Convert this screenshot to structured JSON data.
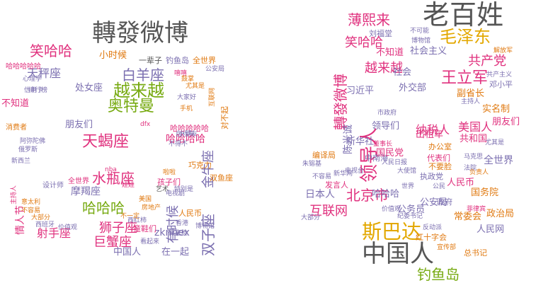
{
  "palette": {
    "gray": "#555555",
    "green": "#77aa11",
    "pink": "#e0317e",
    "purple": "#7b6fb0",
    "orange": "#e07a12",
    "gold": "#e3a800"
  },
  "left_cloud": {
    "words": [
      {
        "text": "轉發微博",
        "color": "gray",
        "size": 34,
        "rot": 0
      },
      {
        "text": "笑哈哈",
        "color": "pink",
        "size": 20,
        "rot": 0
      },
      {
        "text": "小时候",
        "color": "orange",
        "size": 13,
        "rot": 0
      },
      {
        "text": "一辈子",
        "color": "gray",
        "size": 11,
        "rot": 0
      },
      {
        "text": "钓鱼岛",
        "color": "purple",
        "size": 11,
        "rot": 0
      },
      {
        "text": "全世界",
        "color": "orange",
        "size": 11,
        "rot": 0
      },
      {
        "text": "天秤座",
        "color": "purple",
        "size": 16,
        "rot": 0
      },
      {
        "text": "白羊座",
        "color": "purple",
        "size": 20,
        "rot": 0
      },
      {
        "text": "处女座",
        "color": "purple",
        "size": 13,
        "rot": 0
      },
      {
        "text": "越来越",
        "color": "green",
        "size": 24,
        "rot": 0
      },
      {
        "text": "奥特曼",
        "color": "green",
        "size": 22,
        "rot": 0
      },
      {
        "text": "不知道",
        "color": "pink",
        "size": 13,
        "rot": 0
      },
      {
        "text": "朋友们",
        "color": "purple",
        "size": 13,
        "rot": 0
      },
      {
        "text": "金牛座",
        "color": "purple",
        "size": 18,
        "rot": -90
      },
      {
        "text": "对不起",
        "color": "orange",
        "size": 11,
        "rot": -90
      },
      {
        "text": "天蝎座",
        "color": "pink",
        "size": 22,
        "rot": 0
      },
      {
        "text": "哈哈哈哈",
        "color": "pink",
        "size": 14,
        "rot": 0
      },
      {
        "text": "水瓶座",
        "color": "pink",
        "size": 20,
        "rot": 0
      },
      {
        "text": "有时候",
        "color": "purple",
        "size": 18,
        "rot": -90
      },
      {
        "text": "双子座",
        "color": "purple",
        "size": 20,
        "rot": -90
      },
      {
        "text": "巧克力",
        "color": "orange",
        "size": 11,
        "rot": 0
      },
      {
        "text": "双鱼座",
        "color": "orange",
        "size": 11,
        "rot": 0
      },
      {
        "text": "摩羯座",
        "color": "purple",
        "size": 14,
        "rot": 0
      },
      {
        "text": "孩子们",
        "color": "pink",
        "size": 11,
        "rot": 0
      },
      {
        "text": "哈哈哈",
        "color": "green",
        "size": 20,
        "rot": 0
      },
      {
        "text": "射手座",
        "color": "pink",
        "size": 16,
        "rot": 0
      },
      {
        "text": "狮子座",
        "color": "pink",
        "size": 18,
        "rot": 0
      },
      {
        "text": "zknhex",
        "color": "purple",
        "size": 14,
        "rot": 0
      },
      {
        "text": "巨蟹座",
        "color": "pink",
        "size": 18,
        "rot": 0
      },
      {
        "text": "中国人",
        "color": "purple",
        "size": 13,
        "rot": 0
      },
      {
        "text": "在一起",
        "color": "purple",
        "size": 13,
        "rot": 0
      },
      {
        "text": "情人节",
        "color": "pink",
        "size": 14,
        "rot": -90
      },
      {
        "text": "消费者",
        "color": "orange",
        "size": 10,
        "rot": 0
      },
      {
        "text": "设计师",
        "color": "purple",
        "size": 10,
        "rot": 0
      },
      {
        "text": "全世界",
        "color": "pink",
        "size": 10,
        "rot": 0
      },
      {
        "text": "哈哈哈哈哈",
        "color": "pink",
        "size": 10,
        "rot": 0
      },
      {
        "text": "心理学",
        "color": "purple",
        "size": 9,
        "rot": 0
      },
      {
        "text": "排行榜",
        "color": "purple",
        "size": 9,
        "rot": 0
      },
      {
        "text": "信用卡",
        "color": "purple",
        "size": 9,
        "rot": 0
      },
      {
        "text": "阿弥陀佛",
        "color": "purple",
        "size": 9,
        "rot": 0
      },
      {
        "text": "俄罗斯",
        "color": "purple",
        "size": 9,
        "rot": 0
      },
      {
        "text": "主持人",
        "color": "pink",
        "size": 9,
        "rot": -90
      },
      {
        "text": "意太利",
        "color": "orange",
        "size": 9,
        "rot": 0
      },
      {
        "text": "不容易",
        "color": "orange",
        "size": 9,
        "rot": 0
      },
      {
        "text": "大部分",
        "color": "orange",
        "size": 9,
        "rot": 0
      },
      {
        "text": "西班牙",
        "color": "purple",
        "size": 9,
        "rot": 0
      },
      {
        "text": "价值观",
        "color": "purple",
        "size": 9,
        "rot": 0
      },
      {
        "text": "看起来",
        "color": "purple",
        "size": 9,
        "rot": 0
      },
      {
        "text": "特别是",
        "color": "purple",
        "size": 9,
        "rot": 0
      },
      {
        "text": "做鬼脸",
        "color": "purple",
        "size": 9,
        "rot": 0
      },
      {
        "text": "童鞋们",
        "color": "pink",
        "size": 11,
        "rot": 0
      },
      {
        "text": "西红柿",
        "color": "purple",
        "size": 9,
        "rot": 0
      },
      {
        "text": "哈哈哈哈哈",
        "color": "pink",
        "size": 11,
        "rot": 0
      },
      {
        "text": "自行车",
        "color": "purple",
        "size": 9,
        "rot": 0
      },
      {
        "text": "小朋友",
        "color": "purple",
        "size": 9,
        "rot": 0
      },
      {
        "text": "不得不",
        "color": "purple",
        "size": 9,
        "rot": 0
      },
      {
        "text": "尤其是",
        "color": "orange",
        "size": 9,
        "rot": 0
      },
      {
        "text": "互联网",
        "color": "orange",
        "size": 9,
        "rot": -90
      },
      {
        "text": "公安局",
        "color": "purple",
        "size": 9,
        "rot": 0
      },
      {
        "text": "嘻嘻",
        "color": "pink",
        "size": 9,
        "rot": 0
      },
      {
        "text": "鼓掌",
        "color": "orange",
        "size": 9,
        "rot": 0
      },
      {
        "text": "大家好",
        "color": "purple",
        "size": 9,
        "rot": 0
      },
      {
        "text": "手机",
        "color": "orange",
        "size": 9,
        "rot": 0
      },
      {
        "text": "dfx",
        "color": "pink",
        "size": 9,
        "rot": 0
      },
      {
        "text": "nba",
        "color": "pink",
        "size": 9,
        "rot": 0
      },
      {
        "text": "啦啦",
        "color": "orange",
        "size": 9,
        "rot": 0
      },
      {
        "text": "娃娃",
        "color": "pink",
        "size": 9,
        "rot": 0
      },
      {
        "text": "艺术",
        "color": "gray",
        "size": 9,
        "rot": 0
      },
      {
        "text": "美国",
        "color": "orange",
        "size": 9,
        "rot": 0
      },
      {
        "text": "房地产",
        "color": "orange",
        "size": 9,
        "rot": 0
      },
      {
        "text": "人民币",
        "color": "orange",
        "size": 11,
        "rot": 0
      },
      {
        "text": "不一定",
        "color": "orange",
        "size": 9,
        "rot": 0
      },
      {
        "text": "电视剧",
        "color": "purple",
        "size": 9,
        "rot": 0
      },
      {
        "text": "博物馆",
        "color": "purple",
        "size": 9,
        "rot": 0
      },
      {
        "text": "香港",
        "color": "purple",
        "size": 9,
        "rot": 0
      },
      {
        "text": "新西兰",
        "color": "purple",
        "size": 9,
        "rot": 0
      }
    ]
  },
  "right_cloud": {
    "words": [
      {
        "text": "老百姓",
        "color": "gray",
        "size": 38,
        "rot": 0
      },
      {
        "text": "薄熙来",
        "color": "pink",
        "size": 20,
        "rot": 0
      },
      {
        "text": "刘福堂",
        "color": "purple",
        "size": 11,
        "rot": 0
      },
      {
        "text": "不可能",
        "color": "purple",
        "size": 9,
        "rot": 0
      },
      {
        "text": "博物馆",
        "color": "purple",
        "size": 9,
        "rot": 0
      },
      {
        "text": "毛泽东",
        "color": "gold",
        "size": 24,
        "rot": 0
      },
      {
        "text": "笑哈哈",
        "color": "pink",
        "size": 18,
        "rot": 0
      },
      {
        "text": "不知道",
        "color": "pink",
        "size": 13,
        "rot": 0
      },
      {
        "text": "社会主义",
        "color": "purple",
        "size": 13,
        "rot": 0
      },
      {
        "text": "越来越",
        "color": "pink",
        "size": 18,
        "rot": 0
      },
      {
        "text": "共产党",
        "color": "pink",
        "size": 18,
        "rot": 0
      },
      {
        "text": "解放军",
        "color": "orange",
        "size": 9,
        "rot": 0
      },
      {
        "text": "轉發微博",
        "color": "pink",
        "size": 20,
        "rot": -90
      },
      {
        "text": "王立军",
        "color": "pink",
        "size": 22,
        "rot": 0
      },
      {
        "text": "习近平",
        "color": "purple",
        "size": 13,
        "rot": 0
      },
      {
        "text": "社会",
        "color": "purple",
        "size": 13,
        "rot": 0
      },
      {
        "text": "外交部",
        "color": "purple",
        "size": 13,
        "rot": 0
      },
      {
        "text": "副省长",
        "color": "orange",
        "size": 13,
        "rot": 0
      },
      {
        "text": "共产主义",
        "color": "purple",
        "size": 9,
        "rot": 0
      },
      {
        "text": "邓小平",
        "color": "purple",
        "size": 11,
        "rot": 0
      },
      {
        "text": "实名制",
        "color": "orange",
        "size": 13,
        "rot": 0
      },
      {
        "text": "朋友们",
        "color": "pink",
        "size": 13,
        "rot": 0
      },
      {
        "text": "陈光诚",
        "color": "purple",
        "size": 14,
        "rot": -90
      },
      {
        "text": "领导人",
        "color": "pink",
        "size": 26,
        "rot": -90
      },
      {
        "text": "纳税人",
        "color": "pink",
        "size": 16,
        "rot": 0
      },
      {
        "text": "美国人",
        "color": "pink",
        "size": 16,
        "rot": 0
      },
      {
        "text": "新华社",
        "color": "purple",
        "size": 13,
        "rot": 0
      },
      {
        "text": "领导们",
        "color": "purple",
        "size": 13,
        "rot": 0
      },
      {
        "text": "出租车",
        "color": "pink",
        "size": 13,
        "rot": 0
      },
      {
        "text": "共和国",
        "color": "pink",
        "size": 13,
        "rot": 0
      },
      {
        "text": "全世界",
        "color": "purple",
        "size": 14,
        "rot": 0
      },
      {
        "text": "编译局",
        "color": "orange",
        "size": 11,
        "rot": 0
      },
      {
        "text": "中南海",
        "color": "purple",
        "size": 11,
        "rot": 0
      },
      {
        "text": "国民党",
        "color": "pink",
        "size": 13,
        "rot": 0
      },
      {
        "text": "日本人",
        "color": "purple",
        "size": 14,
        "rot": 0
      },
      {
        "text": "北京市",
        "color": "pink",
        "size": 20,
        "rot": 0
      },
      {
        "text": "人民币",
        "color": "pink",
        "size": 13,
        "rot": 0
      },
      {
        "text": "国务院",
        "color": "orange",
        "size": 13,
        "rot": 0
      },
      {
        "text": "互联网",
        "color": "pink",
        "size": 18,
        "rot": 0
      },
      {
        "text": "哈哈哈",
        "color": "purple",
        "size": 13,
        "rot": 0
      },
      {
        "text": "公务员",
        "color": "purple",
        "size": 13,
        "rot": 0
      },
      {
        "text": "公安局",
        "color": "purple",
        "size": 13,
        "rot": 0
      },
      {
        "text": "政府",
        "color": "purple",
        "size": 11,
        "rot": 0
      },
      {
        "text": "常委会",
        "color": "orange",
        "size": 13,
        "rot": 0
      },
      {
        "text": "政治局",
        "color": "orange",
        "size": 13,
        "rot": 0
      },
      {
        "text": "人民网",
        "color": "purple",
        "size": 13,
        "rot": 0
      },
      {
        "text": "斯巴达",
        "color": "gold",
        "size": 28,
        "rot": 0
      },
      {
        "text": "中国人",
        "color": "gray",
        "size": 34,
        "rot": 0
      },
      {
        "text": "红十字会",
        "color": "orange",
        "size": 11,
        "rot": 0
      },
      {
        "text": "宣传部",
        "color": "orange",
        "size": 9,
        "rot": 0
      },
      {
        "text": "总书记",
        "color": "orange",
        "size": 11,
        "rot": 0
      },
      {
        "text": "钓鱼岛",
        "color": "green",
        "size": 20,
        "rot": 0
      },
      {
        "text": "执政党",
        "color": "purple",
        "size": 11,
        "rot": 0
      },
      {
        "text": "反动派",
        "color": "purple",
        "size": 9,
        "rot": 0
      },
      {
        "text": "负责人",
        "color": "orange",
        "size": 9,
        "rot": 0
      },
      {
        "text": "价值观",
        "color": "purple",
        "size": 9,
        "rot": 0
      },
      {
        "text": "纪委书记",
        "color": "purple",
        "size": 9,
        "rot": 0
      },
      {
        "text": "大部分",
        "color": "purple",
        "size": 9,
        "rot": 0
      },
      {
        "text": "发言人",
        "color": "pink",
        "size": 11,
        "rot": 0
      },
      {
        "text": "电视台",
        "color": "purple",
        "size": 9,
        "rot": 0
      },
      {
        "text": "新华网",
        "color": "purple",
        "size": 9,
        "rot": 0
      },
      {
        "text": "市政府",
        "color": "purple",
        "size": 9,
        "rot": 0
      },
      {
        "text": "代表们",
        "color": "pink",
        "size": 11,
        "rot": 0
      },
      {
        "text": "办公室",
        "color": "orange",
        "size": 11,
        "rot": 0
      },
      {
        "text": "不要脸",
        "color": "orange",
        "size": 11,
        "rot": 0
      },
      {
        "text": "马克思",
        "color": "purple",
        "size": 9,
        "rot": 0
      },
      {
        "text": "法院",
        "color": "purple",
        "size": 9,
        "rot": 0
      },
      {
        "text": "尤其是",
        "color": "purple",
        "size": 9,
        "rot": 0
      },
      {
        "text": "朱镕基",
        "color": "purple",
        "size": 9,
        "rot": 0
      },
      {
        "text": "董事长",
        "color": "pink",
        "size": 9,
        "rot": 0
      },
      {
        "text": "大使馆",
        "color": "purple",
        "size": 9,
        "rot": 0
      },
      {
        "text": "世界",
        "color": "purple",
        "size": 9,
        "rot": 0
      },
      {
        "text": "公民",
        "color": "purple",
        "size": 9,
        "rot": 0
      },
      {
        "text": "菲律宾",
        "color": "pink",
        "size": 9,
        "rot": 0
      },
      {
        "text": "人民日报",
        "color": "purple",
        "size": 9,
        "rot": 0
      },
      {
        "text": "不容易",
        "color": "purple",
        "size": 9,
        "rot": 0
      },
      {
        "text": "主持人",
        "color": "purple",
        "size": 9,
        "rot": 0
      }
    ]
  }
}
